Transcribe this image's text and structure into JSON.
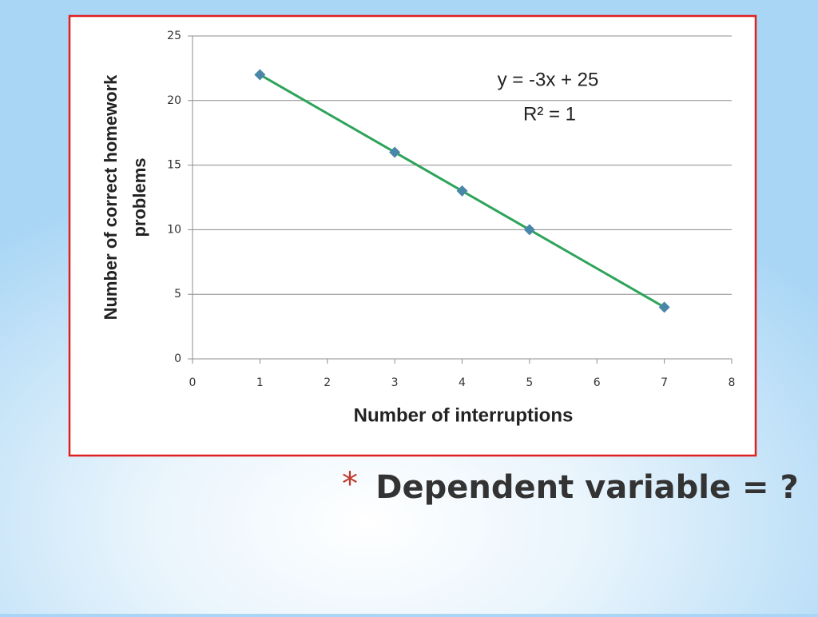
{
  "chart_data": {
    "type": "scatter",
    "xlabel": "Number of interruptions",
    "ylabel": [
      "Number of correct homework",
      "problems"
    ],
    "annotations": [
      "y = -3x + 25",
      "R² = 1"
    ],
    "x": [
      1,
      3,
      4,
      5,
      7
    ],
    "values": [
      22,
      16,
      13,
      10,
      4
    ],
    "color": "#4a86a8",
    "line_color": "#2ea35a",
    "xlim": [
      0,
      8
    ],
    "xticks": [
      0,
      1,
      2,
      3,
      4,
      5,
      6,
      7,
      8
    ],
    "ylim": [
      0,
      25
    ],
    "yticks": [
      0,
      5,
      10,
      15,
      20,
      25
    ],
    "grid": true
  },
  "slide": {
    "bullet": "*",
    "text": "Dependent variable = ?"
  }
}
